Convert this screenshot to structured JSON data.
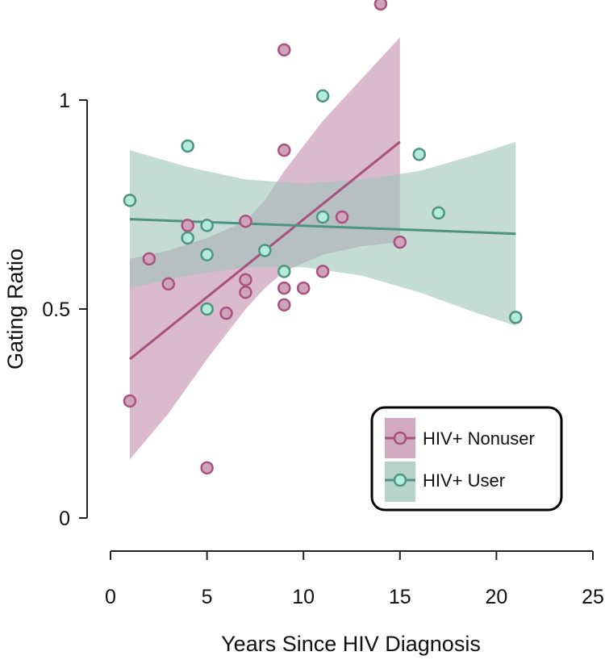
{
  "chart_data": {
    "type": "scatter",
    "title": "",
    "xlabel": "Years Since HIV Diagnosis",
    "ylabel": "Gating Ratio",
    "xlim": [
      0,
      25
    ],
    "ylim": [
      0,
      1.25
    ],
    "x_ticks": [
      0,
      5,
      10,
      15,
      20,
      25
    ],
    "x_tick_labels": [
      "0",
      "5",
      "10",
      "15",
      "20",
      "25"
    ],
    "y_ticks": [
      0,
      0.5,
      1
    ],
    "y_tick_labels": [
      "0",
      "0.5",
      "1"
    ],
    "grid": false,
    "legend_position": "bottom-right",
    "series": [
      {
        "name": "HIV+ Nonuser",
        "color": "#a8537f",
        "fill": "#cfa3bc",
        "band_color": "#c38fad",
        "points": [
          {
            "x": 1,
            "y": 0.28
          },
          {
            "x": 2,
            "y": 0.62
          },
          {
            "x": 3,
            "y": 0.56
          },
          {
            "x": 4,
            "y": 0.7
          },
          {
            "x": 5,
            "y": 0.12
          },
          {
            "x": 6,
            "y": 0.49
          },
          {
            "x": 7,
            "y": 0.71
          },
          {
            "x": 7,
            "y": 0.57
          },
          {
            "x": 7,
            "y": 0.54
          },
          {
            "x": 9,
            "y": 1.12
          },
          {
            "x": 9,
            "y": 0.88
          },
          {
            "x": 9,
            "y": 0.55
          },
          {
            "x": 9,
            "y": 0.51
          },
          {
            "x": 10,
            "y": 0.55
          },
          {
            "x": 11,
            "y": 0.59
          },
          {
            "x": 12,
            "y": 0.72
          },
          {
            "x": 14,
            "y": 1.23
          },
          {
            "x": 15,
            "y": 0.66
          }
        ],
        "fit": {
          "x": [
            1,
            15
          ],
          "y": [
            0.38,
            0.9
          ]
        },
        "ci_upper": [
          {
            "x": 1,
            "y": 0.62
          },
          {
            "x": 3,
            "y": 0.64
          },
          {
            "x": 5,
            "y": 0.67
          },
          {
            "x": 7,
            "y": 0.71
          },
          {
            "x": 8,
            "y": 0.76
          },
          {
            "x": 9,
            "y": 0.83
          },
          {
            "x": 11,
            "y": 0.95
          },
          {
            "x": 13,
            "y": 1.05
          },
          {
            "x": 15,
            "y": 1.15
          }
        ],
        "ci_lower": [
          {
            "x": 1,
            "y": 0.14
          },
          {
            "x": 3,
            "y": 0.25
          },
          {
            "x": 5,
            "y": 0.38
          },
          {
            "x": 7,
            "y": 0.5
          },
          {
            "x": 8,
            "y": 0.55
          },
          {
            "x": 9,
            "y": 0.59
          },
          {
            "x": 11,
            "y": 0.63
          },
          {
            "x": 13,
            "y": 0.65
          },
          {
            "x": 15,
            "y": 0.66
          }
        ]
      },
      {
        "name": "HIV+ User",
        "color": "#4f9480",
        "fill": "#b2ebd9",
        "band_color": "#9fc4b7",
        "points": [
          {
            "x": 1,
            "y": 0.76
          },
          {
            "x": 4,
            "y": 0.89
          },
          {
            "x": 4,
            "y": 0.67
          },
          {
            "x": 5,
            "y": 0.7
          },
          {
            "x": 5,
            "y": 0.63
          },
          {
            "x": 5,
            "y": 0.5
          },
          {
            "x": 8,
            "y": 0.64
          },
          {
            "x": 9,
            "y": 0.59
          },
          {
            "x": 11,
            "y": 1.01
          },
          {
            "x": 11,
            "y": 0.72
          },
          {
            "x": 16,
            "y": 0.87
          },
          {
            "x": 17,
            "y": 0.73
          },
          {
            "x": 21,
            "y": 0.48
          }
        ],
        "fit": {
          "x": [
            1,
            21
          ],
          "y": [
            0.715,
            0.68
          ]
        },
        "ci_upper": [
          {
            "x": 1,
            "y": 0.88
          },
          {
            "x": 4,
            "y": 0.84
          },
          {
            "x": 7,
            "y": 0.81
          },
          {
            "x": 10,
            "y": 0.8
          },
          {
            "x": 13,
            "y": 0.81
          },
          {
            "x": 16,
            "y": 0.83
          },
          {
            "x": 19,
            "y": 0.87
          },
          {
            "x": 21,
            "y": 0.9
          }
        ],
        "ci_lower": [
          {
            "x": 1,
            "y": 0.55
          },
          {
            "x": 4,
            "y": 0.58
          },
          {
            "x": 7,
            "y": 0.6
          },
          {
            "x": 10,
            "y": 0.6
          },
          {
            "x": 13,
            "y": 0.58
          },
          {
            "x": 16,
            "y": 0.54
          },
          {
            "x": 19,
            "y": 0.49
          },
          {
            "x": 21,
            "y": 0.46
          }
        ]
      }
    ]
  }
}
